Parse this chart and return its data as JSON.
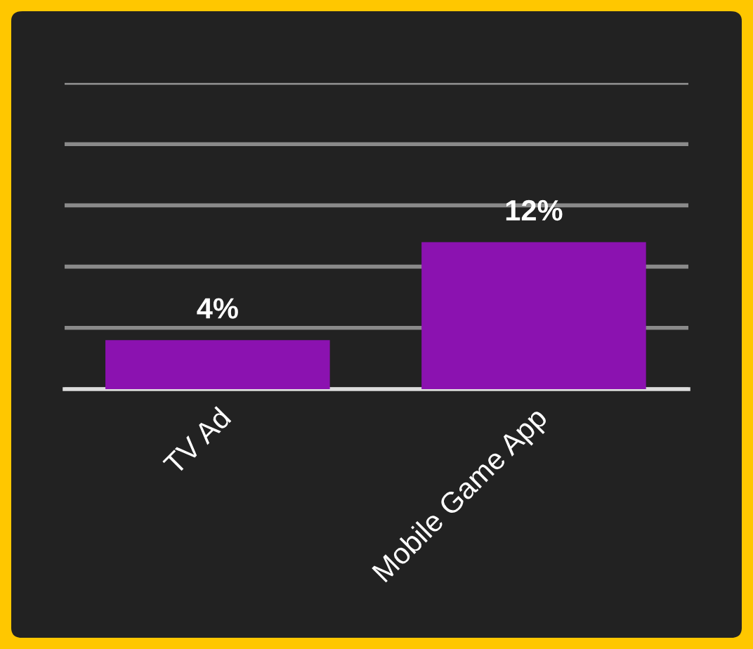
{
  "chart_data": {
    "type": "bar",
    "categories": [
      "TV Ad",
      "Mobile Game App"
    ],
    "values": [
      4,
      12
    ],
    "color": "#8b12b0",
    "value_labels": [
      "4%",
      "12%"
    ],
    "ylim": [
      0,
      25
    ],
    "yticks": [
      {
        "value": 0,
        "label": null
      },
      {
        "value": 5,
        "label": null
      },
      {
        "value": 10,
        "label": null
      },
      {
        "value": 15,
        "label": null
      },
      {
        "value": 20,
        "label": null
      },
      {
        "value": 25,
        "label": null
      }
    ],
    "tick_labels": "x",
    "grid": "y",
    "legend": false
  }
}
